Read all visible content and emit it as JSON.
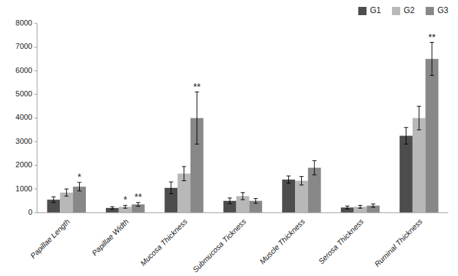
{
  "chart_data": {
    "type": "bar",
    "categories": [
      "Papillae Length",
      "Papillae Width",
      "Mucosa Thickness",
      "Submucosa Tickness",
      "Muscle Thickness",
      "Serosa Thickness",
      "Ruminal Thickness"
    ],
    "series": [
      {
        "name": "G1",
        "color": "#4d4d4d",
        "values": [
          550,
          200,
          1050,
          500,
          1400,
          220,
          3250
        ],
        "errors": [
          120,
          50,
          250,
          120,
          150,
          60,
          350
        ]
      },
      {
        "name": "G2",
        "color": "#b8b8b8",
        "values": [
          850,
          250,
          1650,
          700,
          1350,
          250,
          4000
        ],
        "errors": [
          150,
          60,
          300,
          150,
          180,
          60,
          500
        ]
      },
      {
        "name": "G3",
        "color": "#888888",
        "values": [
          1100,
          350,
          4000,
          500,
          1900,
          300,
          6500
        ],
        "errors": [
          180,
          80,
          1100,
          100,
          300,
          70,
          700
        ]
      }
    ],
    "annotations": [
      {
        "text": "*",
        "category": "Papillae Length",
        "series": "G3"
      },
      {
        "text": "*",
        "category": "Papillae Width",
        "series": "G2"
      },
      {
        "text": "**",
        "category": "Papillae Width",
        "series": "G3"
      },
      {
        "text": "**",
        "category": "Mucosa Thickness",
        "series": "G3"
      },
      {
        "text": "**",
        "category": "Ruminal Thickness",
        "series": "G3"
      }
    ],
    "ylim": [
      0,
      8000
    ],
    "yticks": [
      0,
      1000,
      2000,
      3000,
      4000,
      5000,
      6000,
      7000,
      8000
    ],
    "grid": false,
    "legend": "upper right"
  }
}
